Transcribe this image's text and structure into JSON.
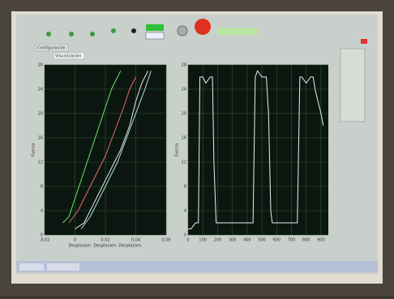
{
  "tabs": [
    "Configuración",
    "Visualización"
  ],
  "chart_data": [
    {
      "type": "line",
      "ylabel": "Fuerza",
      "xlabel": "Desplazam. Desplazam. Desplazam.",
      "grid": true,
      "xlim": [
        -0.02,
        0.06
      ],
      "ylim": [
        0,
        28
      ],
      "xticks": [
        {
          "value": -0.02,
          "label": "-0,02"
        },
        0,
        {
          "value": 0.02,
          "label": "0,02"
        },
        {
          "value": 0.04,
          "label": "0,04"
        },
        {
          "value": 0.06,
          "label": "0,06"
        }
      ],
      "yticks": [
        0,
        4,
        8,
        12,
        16,
        20,
        24,
        28
      ],
      "series": [
        {
          "color": "#5fe85f",
          "x": [
            -0.008,
            -0.004,
            0.0,
            0.004,
            0.008,
            0.012,
            0.016,
            0.02,
            0.024,
            0.028,
            0.03
          ],
          "values": [
            2,
            3,
            6,
            9,
            12,
            15,
            18,
            21,
            24,
            26,
            27
          ]
        },
        {
          "color": "#e8e8e8",
          "x": [
            0.0,
            0.006,
            0.012,
            0.018,
            0.024,
            0.03,
            0.036,
            0.04,
            0.044,
            0.048
          ],
          "values": [
            1,
            2,
            5,
            8,
            11,
            14,
            18,
            22,
            25,
            27
          ]
        },
        {
          "color": "#e06a6a",
          "x": [
            -0.004,
            0.002,
            0.008,
            0.014,
            0.02,
            0.026,
            0.032,
            0.036,
            0.04
          ],
          "values": [
            2,
            4,
            7,
            10,
            13,
            17,
            21,
            24,
            26
          ]
        },
        {
          "color": "#a8e8e8",
          "x": [
            0.004,
            0.01,
            0.016,
            0.022,
            0.028,
            0.034,
            0.04,
            0.046,
            0.05
          ],
          "values": [
            1,
            3,
            6,
            9,
            12,
            16,
            20,
            24,
            27
          ]
        }
      ]
    },
    {
      "type": "line",
      "ylabel": "Fuerza",
      "grid": true,
      "xlim": [
        0,
        950
      ],
      "ylim": [
        0,
        28
      ],
      "xticks": [
        0,
        100,
        200,
        300,
        400,
        500,
        600,
        700,
        800,
        900
      ],
      "yticks": [
        0,
        4,
        8,
        12,
        16,
        20,
        24,
        28
      ],
      "series": [
        {
          "color": "#e8f0f0",
          "x": [
            0,
            20,
            50,
            70,
            80,
            100,
            120,
            150,
            165,
            175,
            190,
            300,
            400,
            440,
            455,
            470,
            500,
            530,
            545,
            560,
            570,
            700,
            740,
            757,
            770,
            800,
            830,
            847,
            860,
            900,
            915
          ],
          "values": [
            1,
            1,
            2,
            2,
            26,
            26,
            25,
            26,
            26,
            12,
            2,
            2,
            2,
            2,
            26,
            27,
            26,
            26,
            20,
            4,
            2,
            2,
            2,
            26,
            26,
            25,
            26,
            26,
            24,
            20,
            18
          ]
        }
      ]
    }
  ]
}
